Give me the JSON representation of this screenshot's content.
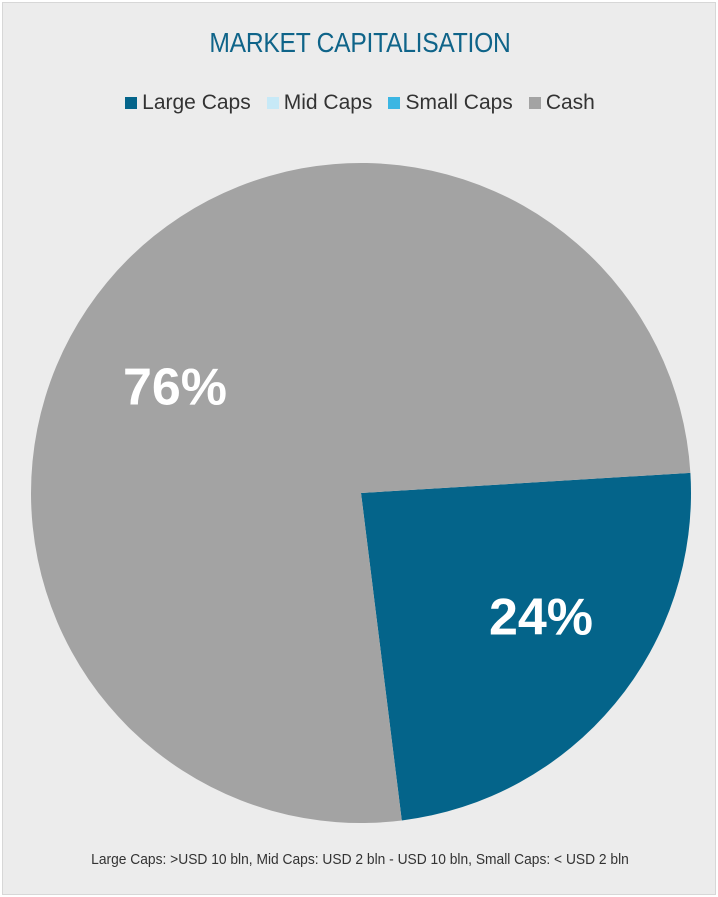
{
  "chart_data": {
    "type": "pie",
    "title": "MARKET CAPITALISATION",
    "categories": [
      "Large Caps",
      "Mid Caps",
      "Small Caps",
      "Cash"
    ],
    "values": [
      24,
      0,
      0,
      76
    ],
    "value_labels": [
      "24%",
      "",
      "",
      "76%"
    ],
    "colors": [
      "#04648a",
      "#c7e9f7",
      "#3bb6e3",
      "#a3a3a3"
    ],
    "legend_position": "top",
    "footnote": "Large Caps: >USD 10 bln, Mid Caps: USD 2 bln - USD 10 bln, Small Caps: < USD 2 bln",
    "label_color": "#ffffff",
    "background_color": "#ececec"
  }
}
